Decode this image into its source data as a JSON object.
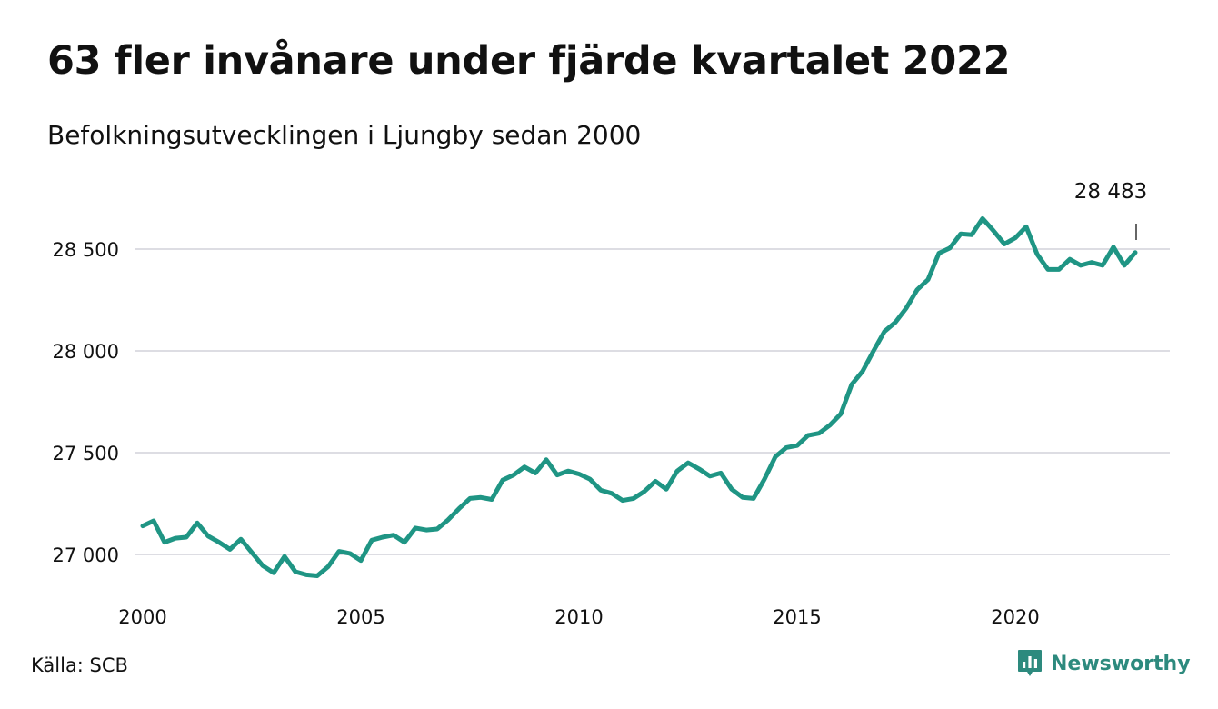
{
  "title": "63 fler invånare under fjärde kvartalet 2022",
  "subtitle": "Befolkningsutvecklingen i Ljungby sedan 2000",
  "source": "Källa: SCB",
  "brand": {
    "name": "Newsworthy",
    "icon": "newsworthy-logo-icon",
    "color": "#2d8a7e"
  },
  "colors": {
    "line": "#1f9584",
    "grid": "#dddde3",
    "text": "#111111"
  },
  "chart_data": {
    "type": "line",
    "title": "63 fler invånare under fjärde kvartalet 2022",
    "subtitle": "Befolkningsutvecklingen i Ljungby sedan 2000",
    "xlabel": "",
    "ylabel": "",
    "xlim": [
      2000,
      2023.05
    ],
    "ylim": [
      26850,
      28700
    ],
    "grid": "horizontal",
    "x_ticks": [
      2000,
      2005,
      2010,
      2015,
      2020
    ],
    "x_tick_labels": [
      "2000",
      "2005",
      "2010",
      "2015",
      "2020"
    ],
    "y_ticks": [
      27000,
      27500,
      28000,
      28500
    ],
    "y_tick_labels": [
      "27 000",
      "27 500",
      "28 000",
      "28 500"
    ],
    "end_label": "28 483",
    "series": [
      {
        "x_start": 2000.0,
        "x_step": 0.25,
        "values": [
          27140,
          27165,
          27060,
          27080,
          27085,
          27155,
          27090,
          27060,
          27025,
          27075,
          27010,
          26945,
          26910,
          26990,
          26915,
          26900,
          26895,
          26940,
          27015,
          27005,
          26970,
          27070,
          27085,
          27095,
          27060,
          27130,
          27120,
          27125,
          27170,
          27225,
          27275,
          27280,
          27270,
          27365,
          27390,
          27430,
          27400,
          27465,
          27390,
          27410,
          27395,
          27370,
          27315,
          27300,
          27265,
          27275,
          27310,
          27360,
          27320,
          27410,
          27450,
          27420,
          27385,
          27400,
          27320,
          27280,
          27275,
          27370,
          27480,
          27525,
          27535,
          27585,
          27595,
          27635,
          27690,
          27835,
          27900,
          28000,
          28095,
          28140,
          28210,
          28300,
          28350,
          28480,
          28505,
          28575,
          28570,
          28650,
          28590,
          28525,
          28555,
          28610,
          28475,
          28400,
          28400,
          28450,
          28420,
          28435,
          28420,
          28510,
          28420,
          28483
        ]
      }
    ]
  }
}
